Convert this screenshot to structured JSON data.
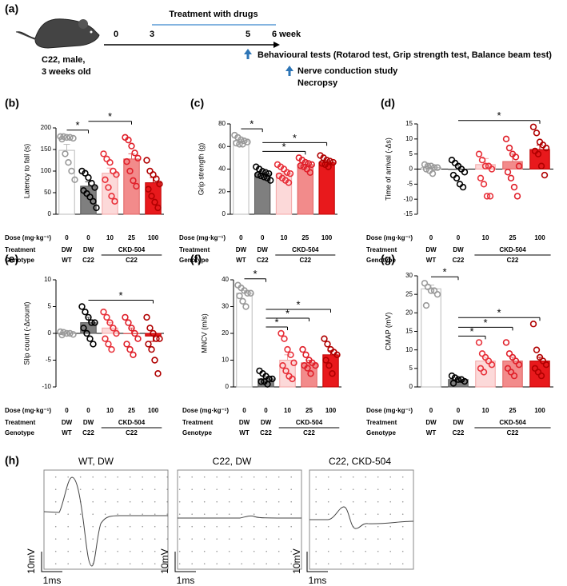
{
  "panel_a": {
    "label": "(a)",
    "bracket_label": "Treatment with drugs",
    "weeks": [
      "0",
      "3",
      "5",
      "6 week"
    ],
    "mouse": [
      "C22, male,",
      "3 weeks old"
    ],
    "behaviour": "Behavioural tests (Rotarod test, Grip strength test, Balance beam test)",
    "nerve": "Nerve conduction study",
    "necropsy": "Necropsy"
  },
  "chart_data": [
    {
      "type": "bar",
      "label": "(b)",
      "ylabel": "Latency to fall (s)",
      "categories": [
        "0",
        "0",
        "10",
        "25",
        "100"
      ],
      "values": [
        148,
        65,
        95,
        128,
        73
      ],
      "errors": [
        14,
        10,
        12,
        12,
        12
      ],
      "points": [
        [
          180,
          180,
          178,
          178,
          176,
          174,
          140,
          120,
          100,
          80
        ],
        [
          100,
          95,
          85,
          72,
          62,
          55,
          48,
          40,
          30,
          15
        ],
        [
          140,
          128,
          120,
          100,
          92,
          80,
          62,
          42,
          30
        ],
        [
          178,
          172,
          158,
          142,
          130,
          122,
          100,
          78,
          65
        ],
        [
          125,
          100,
          92,
          82,
          70,
          58,
          42,
          28,
          15
        ]
      ],
      "ylim": [
        0,
        200
      ],
      "yticks": [
        0,
        50,
        100,
        150,
        200
      ],
      "significance": [
        {
          "from": 0,
          "to": 1,
          "label": "*"
        },
        {
          "from": 1,
          "to": 3,
          "label": "*"
        }
      ],
      "dose_label": "Dose (mg·kg⁻¹)",
      "treatment_label": "Treatment",
      "genotype_label": "Genotype",
      "treatments": [
        "DW",
        "DW",
        "CKD-504"
      ],
      "genotypes": [
        "WT",
        "C22",
        "C22"
      ]
    },
    {
      "type": "bar",
      "label": "(c)",
      "ylabel": "Grip strength (g)",
      "categories": [
        "0",
        "0",
        "10",
        "25",
        "100"
      ],
      "values": [
        65,
        36,
        36,
        44,
        46
      ],
      "errors": [
        1,
        1.5,
        2,
        2,
        1.5
      ],
      "points": [
        [
          70,
          68,
          66,
          65,
          64,
          63,
          62,
          62
        ],
        [
          42,
          40,
          38,
          37,
          36,
          35,
          34,
          33,
          32,
          30
        ],
        [
          44,
          42,
          40,
          37,
          36,
          34,
          32,
          30,
          28
        ],
        [
          50,
          48,
          46,
          45,
          44,
          43,
          42,
          40,
          37
        ],
        [
          52,
          50,
          48,
          47,
          46,
          45,
          44,
          42
        ]
      ],
      "ylim": [
        0,
        80
      ],
      "yticks": [
        0,
        20,
        40,
        60,
        80
      ],
      "significance": [
        {
          "from": 0,
          "to": 1,
          "label": "*"
        },
        {
          "from": 1,
          "to": 3,
          "label": "*"
        },
        {
          "from": 1,
          "to": 4,
          "label": "*"
        }
      ],
      "dose_label": "Dose (mg·kg⁻¹)",
      "treatment_label": "Treatment",
      "genotype_label": "Genotype",
      "treatments": [
        "DW",
        "DW",
        "CKD-504"
      ],
      "genotypes": [
        "WT",
        "C22",
        "C22"
      ]
    },
    {
      "type": "bar",
      "label": "(d)",
      "ylabel": "Time of arrival (-Δs)",
      "categories": [
        "0",
        "0",
        "10",
        "25",
        "100"
      ],
      "values": [
        0.5,
        0,
        1.5,
        2.5,
        6.5
      ],
      "errors": [
        0.5,
        1.5,
        2,
        2.5,
        1.5
      ],
      "points": [
        [
          1.5,
          1,
          1,
          0.5,
          0.5,
          0,
          -0.5,
          -1.5
        ],
        [
          3,
          2,
          1,
          0,
          -1,
          -2,
          -3,
          -5,
          -6
        ],
        [
          5,
          3,
          1,
          1,
          0,
          -3,
          -5,
          -9,
          -9
        ],
        [
          10,
          7,
          5,
          4,
          1,
          -1,
          -3,
          -6,
          -9
        ],
        [
          14,
          12,
          9,
          8,
          7,
          6,
          5,
          1,
          -2
        ]
      ],
      "ylim": [
        -15,
        15
      ],
      "yticks": [
        -15,
        -10,
        -5,
        0,
        5,
        10,
        15
      ],
      "significance": [
        {
          "from": 1,
          "to": 4,
          "label": "*"
        }
      ],
      "dose_label": "Dose (mg·kg⁻¹)",
      "treatment_label": "Treatment",
      "genotype_label": "Genotype",
      "treatments": [
        "DW",
        "DW",
        "CKD-504"
      ],
      "genotypes": [
        "WT",
        "C22",
        "C22"
      ]
    },
    {
      "type": "bar",
      "label": "(e)",
      "ylabel": "Slip count (-Δcount)",
      "categories": [
        "0",
        "0",
        "10",
        "25",
        "100"
      ],
      "values": [
        0,
        2,
        1,
        0,
        -0.5
      ],
      "errors": [
        0.2,
        1,
        1,
        1,
        1
      ],
      "points": [
        [
          0.3,
          0.2,
          0,
          0,
          -0.2,
          -0.3
        ],
        [
          5,
          4,
          3,
          2,
          2,
          1,
          0,
          -1,
          -2
        ],
        [
          4,
          3,
          2,
          1,
          0,
          -1,
          -2,
          -3
        ],
        [
          3,
          2,
          1,
          0,
          -1,
          -2,
          -3,
          -4
        ],
        [
          3,
          1,
          0,
          -1,
          -1,
          -2,
          -3,
          -5,
          -7.5
        ]
      ],
      "ylim": [
        -10,
        10
      ],
      "yticks": [
        -10,
        -5,
        0,
        5,
        10
      ],
      "significance": [
        {
          "from": 1,
          "to": 4,
          "label": "*"
        }
      ],
      "dose_label": "Dose (mg·kg⁻¹)",
      "treatment_label": "Treatment",
      "genotype_label": "Genotype",
      "treatments": [
        "DW",
        "DW",
        "CKD-504"
      ],
      "genotypes": [
        "WT",
        "C22",
        "C22"
      ]
    },
    {
      "type": "bar",
      "label": "(f)",
      "ylabel": "MNCV (m/s)",
      "categories": [
        "0",
        "0",
        "10",
        "25",
        "100"
      ],
      "values": [
        35,
        3,
        10,
        9,
        12
      ],
      "errors": [
        1,
        0.8,
        2,
        1,
        1.5
      ],
      "points": [
        [
          38,
          37,
          36,
          35,
          35,
          34,
          32,
          30
        ],
        [
          6,
          5,
          4,
          3,
          3,
          2,
          2,
          1
        ],
        [
          20,
          18,
          14,
          12,
          9,
          8,
          6,
          4,
          3
        ],
        [
          14,
          12,
          10,
          9,
          8,
          8,
          7,
          5
        ],
        [
          18,
          16,
          14,
          13,
          12,
          10,
          8,
          5
        ]
      ],
      "ylim": [
        0,
        40
      ],
      "yticks": [
        0,
        10,
        20,
        30,
        40
      ],
      "significance": [
        {
          "from": 0,
          "to": 1,
          "label": "*"
        },
        {
          "from": 1,
          "to": 2,
          "label": "*"
        },
        {
          "from": 1,
          "to": 3,
          "label": "*"
        },
        {
          "from": 1,
          "to": 4,
          "label": "*"
        }
      ],
      "dose_label": "Dose (mg·kg⁻¹)",
      "treatment_label": "Treatment",
      "genotype_label": "Genotype",
      "treatments": [
        "DW",
        "DW",
        "CKD-504"
      ],
      "genotypes": [
        "WT",
        "C22",
        "C22"
      ]
    },
    {
      "type": "bar",
      "label": "(g)",
      "ylabel": "CMAP (mV)",
      "categories": [
        "0",
        "0",
        "10",
        "25",
        "100"
      ],
      "values": [
        26.5,
        2,
        7,
        7,
        7
      ],
      "errors": [
        1,
        0.3,
        1,
        1,
        1
      ],
      "points": [
        [
          28,
          27,
          26,
          26,
          25,
          22
        ],
        [
          3,
          2.5,
          2,
          2,
          1.5,
          1
        ],
        [
          12,
          9,
          8,
          7,
          6,
          5,
          4
        ],
        [
          12,
          9,
          8,
          7,
          6,
          5,
          4,
          3
        ],
        [
          17,
          10,
          8,
          7,
          6,
          5,
          4,
          3
        ]
      ],
      "ylim": [
        0,
        30
      ],
      "yticks": [
        0,
        5,
        10,
        15,
        20,
        25,
        30
      ],
      "significance": [
        {
          "from": 0,
          "to": 1,
          "label": "*"
        },
        {
          "from": 1,
          "to": 2,
          "label": "*"
        },
        {
          "from": 1,
          "to": 3,
          "label": "*"
        },
        {
          "from": 1,
          "to": 4,
          "label": "*"
        }
      ],
      "dose_label": "Dose (mg·kg⁻¹)",
      "treatment_label": "Treatment",
      "genotype_label": "Genotype",
      "treatments": [
        "DW",
        "DW",
        "CKD-504"
      ],
      "genotypes": [
        "WT",
        "C22",
        "C22"
      ]
    }
  ],
  "panel_h": {
    "label": "(h)",
    "titles": [
      "WT, DW",
      "C22, DW",
      "C22, CKD-504"
    ],
    "scale_y": "10mV",
    "scale_x": "1ms"
  }
}
